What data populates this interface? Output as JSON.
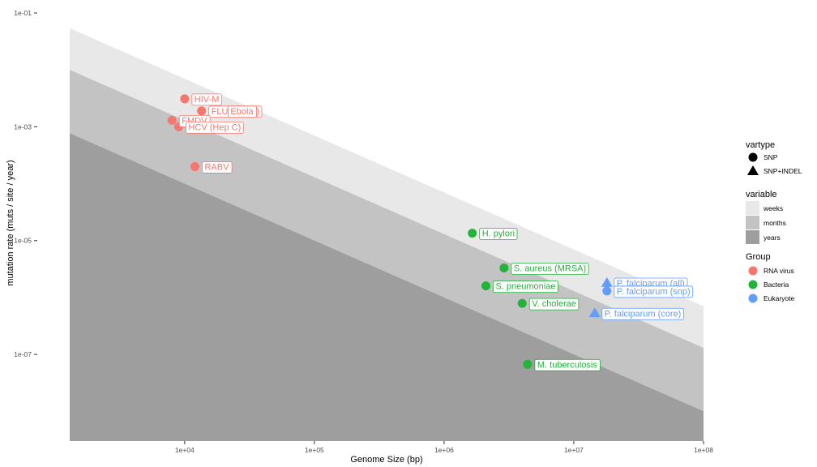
{
  "chart_data": {
    "type": "scatter",
    "title": "",
    "xlabel": "Genome Size (bp)",
    "ylabel": "mutation rate (muts / site / year)",
    "x_scale": "log10",
    "y_scale": "log10",
    "xlim": [
      1300,
      100000000
    ],
    "ylim": [
      3e-09,
      0.13
    ],
    "x_ticks": [
      {
        "value": 10000,
        "label": "1e+04"
      },
      {
        "value": 100000,
        "label": "1e+05"
      },
      {
        "value": 1000000,
        "label": "1e+06"
      },
      {
        "value": 10000000,
        "label": "1e+07"
      },
      {
        "value": 100000000,
        "label": "1e+08"
      }
    ],
    "y_ticks": [
      {
        "value": 0.1,
        "label": "1e-01"
      },
      {
        "value": 0.001,
        "label": "1e-03"
      },
      {
        "value": 1e-05,
        "label": "1e-05"
      },
      {
        "value": 1e-07,
        "label": "1e-07"
      }
    ],
    "bands": [
      {
        "name": "weeks",
        "color": "#e8e8e8",
        "product_at_upper": 70
      },
      {
        "name": "months",
        "color": "#c3c3c3",
        "product_at_upper": 13
      },
      {
        "name": "years",
        "color": "#9e9e9e",
        "product_at_upper": 1
      }
    ],
    "points": [
      {
        "label": "HIV-M",
        "x": 10000,
        "y": 0.0031,
        "group": "RNA virus",
        "vartype": "SNP"
      },
      {
        "label": "FLU (H1N1)",
        "x": 13500,
        "y": 0.0019,
        "group": "RNA virus",
        "vartype": "SNP"
      },
      {
        "label": "Ebola",
        "x": 19000,
        "y": 0.0019,
        "group": "RNA virus",
        "vartype": "SNP"
      },
      {
        "label": "FMDV",
        "x": 8000,
        "y": 0.0013,
        "group": "RNA virus",
        "vartype": "SNP"
      },
      {
        "label": "HCV (Hep C)",
        "x": 9000,
        "y": 0.001,
        "group": "RNA virus",
        "vartype": "SNP"
      },
      {
        "label": "RABV",
        "x": 12000,
        "y": 0.0002,
        "group": "RNA virus",
        "vartype": "SNP"
      },
      {
        "label": "H. pylori",
        "x": 1650000,
        "y": 1.35e-05,
        "group": "Bacteria",
        "vartype": "SNP"
      },
      {
        "label": "S. aureus (MRSA)",
        "x": 2900000,
        "y": 3.3e-06,
        "group": "Bacteria",
        "vartype": "SNP"
      },
      {
        "label": "S. pneumoniae",
        "x": 2100000,
        "y": 1.6e-06,
        "group": "Bacteria",
        "vartype": "SNP"
      },
      {
        "label": "V. cholerae",
        "x": 4000000,
        "y": 7.9e-07,
        "group": "Bacteria",
        "vartype": "SNP"
      },
      {
        "label": "M. tuberculosis",
        "x": 4400000,
        "y": 6.7e-08,
        "group": "Bacteria",
        "vartype": "SNP"
      },
      {
        "label": "P. falciparum (all)",
        "x": 18000000,
        "y": 1.8e-06,
        "group": "Eukaryote",
        "vartype": "SNP+INDEL"
      },
      {
        "label": "P. falciparum (snp)",
        "x": 18000000,
        "y": 1.3e-06,
        "group": "Eukaryote",
        "vartype": "SNP"
      },
      {
        "label": "P. falciparum (core)",
        "x": 14500000,
        "y": 5.3e-07,
        "group": "Eukaryote",
        "vartype": "SNP+INDEL"
      }
    ],
    "legend": {
      "placement": "right",
      "vartype": {
        "title": "vartype",
        "items": [
          {
            "label": "SNP",
            "shape": "circle"
          },
          {
            "label": "SNP+INDEL",
            "shape": "triangle"
          }
        ]
      },
      "variable": {
        "title": "variable",
        "items": [
          {
            "label": "weeks",
            "color": "#e8e8e8"
          },
          {
            "label": "months",
            "color": "#c3c3c3"
          },
          {
            "label": "years",
            "color": "#9e9e9e"
          }
        ]
      },
      "group": {
        "title": "Group",
        "items": [
          {
            "label": "RNA virus",
            "color": "#f8766d"
          },
          {
            "label": "Bacteria",
            "color": "#22b33a"
          },
          {
            "label": "Eukaryote",
            "color": "#619cff"
          }
        ]
      }
    }
  }
}
